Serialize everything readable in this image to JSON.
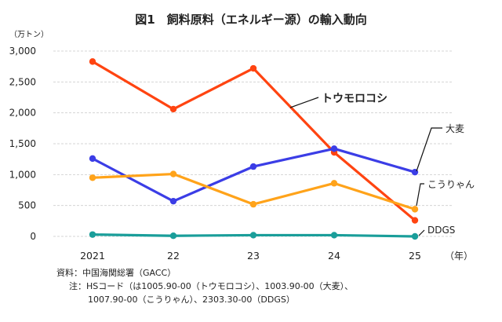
{
  "chart_data": {
    "type": "line",
    "title": "図1　飼料原料（エネルギー源）の輸入動向",
    "ylabel": "（万トン）",
    "xlabel": "（年）",
    "categories": [
      "2021",
      "22",
      "23",
      "24",
      "25"
    ],
    "ylim": [
      0,
      3000
    ],
    "yticks": [
      0,
      500,
      1000,
      1500,
      2000,
      2500,
      3000
    ],
    "ytick_labels": [
      "0",
      "500",
      "1,000",
      "1,500",
      "2,000",
      "2,500",
      "3,000"
    ],
    "grid": true,
    "series": [
      {
        "name": "トウモロコシ",
        "color": "#ff4411",
        "values": [
          2830,
          2060,
          2720,
          1360,
          260
        ]
      },
      {
        "name": "大麦",
        "color": "#3b3de6",
        "values": [
          1260,
          570,
          1130,
          1420,
          1040
        ]
      },
      {
        "name": "こうりゃん",
        "color": "#ffa31a",
        "values": [
          950,
          1010,
          520,
          860,
          440
        ]
      },
      {
        "name": "DDGS",
        "color": "#1a9e9a",
        "values": [
          30,
          10,
          20,
          20,
          0
        ]
      }
    ]
  },
  "notes": {
    "source": "資料：中国海関総署（GACC）",
    "note_line1": "注：HSコード（は1005.90-00（トウモロコシ）、1003.90-00（大麦）、",
    "note_line2": "1007.90-00（こうりゃん）、2303.30-00（DDGS）"
  }
}
